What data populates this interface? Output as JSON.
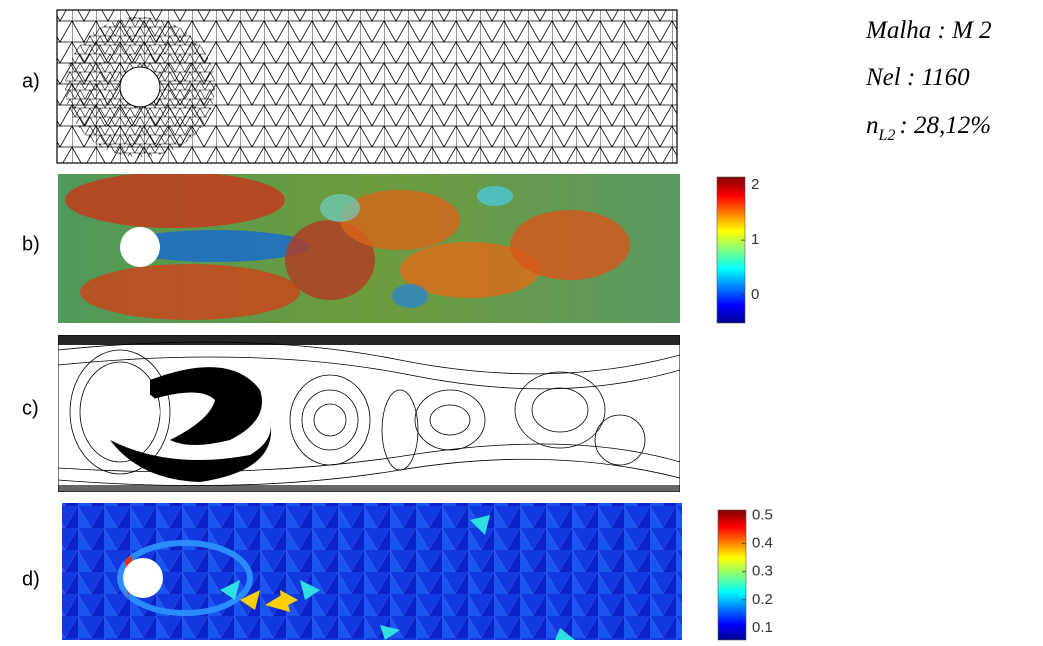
{
  "panels": [
    {
      "label": "a)"
    },
    {
      "label": "b)",
      "colorbar": {
        "lim": [
          -0.51,
          2.15
        ],
        "ticks": [
          2,
          1,
          0
        ]
      }
    },
    {
      "label": "c)"
    },
    {
      "label": "d)",
      "colorbar": {
        "lim": [
          0.057,
          0.52
        ],
        "ticks": [
          0.5,
          0.4,
          0.3,
          0.2,
          0.1
        ]
      }
    }
  ],
  "annotation": {
    "mesh": "Malha : M 2",
    "elements": "Nel : 1160",
    "norm": {
      "symbol": "n",
      "subscript": "L2",
      "text": ": 28,12%"
    }
  }
}
